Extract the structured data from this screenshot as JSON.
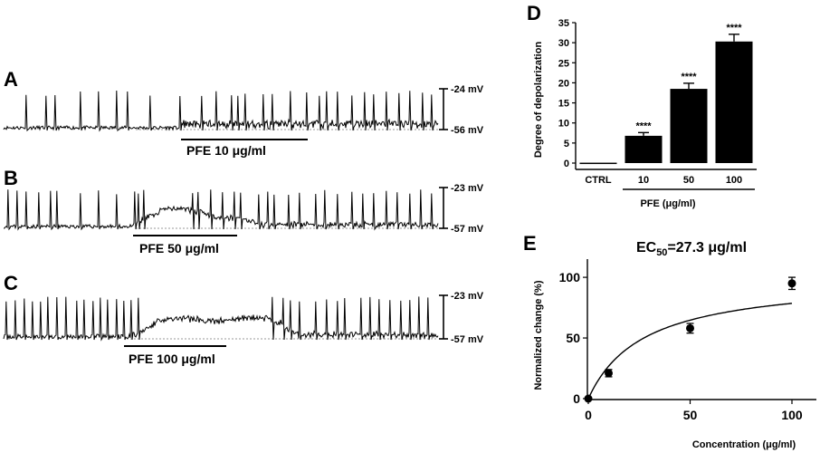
{
  "panels": {
    "A": {
      "letter": "A",
      "treatment_label": "PFE 10 μg/ml",
      "scale_top_label": "-24 mV",
      "scale_bottom_label": "-56 mV"
    },
    "B": {
      "letter": "B",
      "treatment_label": "PFE 50 μg/ml",
      "scale_top_label": "-23 mV",
      "scale_bottom_label": "-57 mV"
    },
    "C": {
      "letter": "C",
      "treatment_label": "PFE 100 μg/ml",
      "scale_top_label": "-23 mV",
      "scale_bottom_label": "-57 mV"
    }
  },
  "chart_data": [
    {
      "panel": "D",
      "type": "bar",
      "ylabel": "Degree of depolarization",
      "xlabel": "PFE (μg/ml)",
      "categories": [
        "CTRL",
        "10",
        "50",
        "100"
      ],
      "values": [
        0.1,
        6.8,
        18.5,
        30.3
      ],
      "errors": [
        0,
        0.8,
        1.4,
        1.8
      ],
      "significance": [
        "",
        "****",
        "****",
        "****"
      ],
      "ylim": [
        0,
        35
      ],
      "yticks": [
        0,
        5,
        10,
        15,
        20,
        25,
        30,
        35
      ],
      "grid": false
    },
    {
      "panel": "E",
      "type": "scatter",
      "title_prefix": "EC",
      "title_subscript": "50",
      "title_suffix": "=27.3 μg/ml",
      "ylabel": "Normalized change (%)",
      "xlabel": "Concentration (μg/ml)",
      "x": [
        0,
        10,
        50,
        100
      ],
      "y": [
        0,
        21,
        58,
        95
      ],
      "errors": [
        0,
        3,
        4,
        5
      ],
      "fit": {
        "model": "hyperbolic",
        "ymax": 100,
        "ec50": 27.3
      },
      "xlim": [
        0,
        112
      ],
      "ylim": [
        0,
        115
      ],
      "xticks": [
        0,
        50,
        100
      ],
      "yticks": [
        0,
        50,
        100
      ],
      "grid": false
    }
  ]
}
